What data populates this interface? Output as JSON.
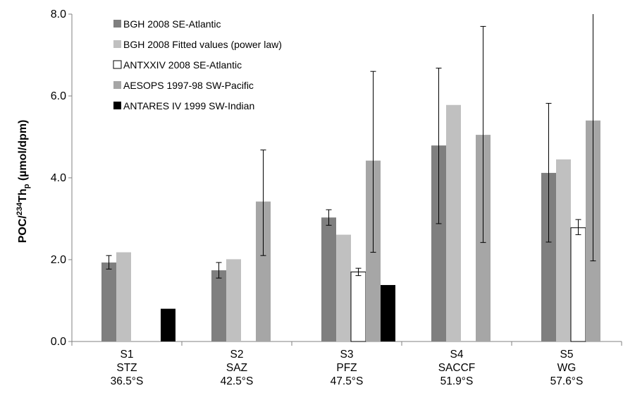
{
  "chart_data": {
    "type": "bar",
    "ylabel": {
      "prefix": "POC/",
      "superscript": "234",
      "element": "Th",
      "subscript": "p",
      "unit": " (µmol/dpm)"
    },
    "ylim": [
      0,
      8
    ],
    "yticks": [
      "0.0",
      "2.0",
      "4.0",
      "6.0",
      "8.0"
    ],
    "grid": false,
    "legend_position": "top-left",
    "categories": [
      [
        "S1",
        "STZ",
        "36.5°S"
      ],
      [
        "S2",
        "SAZ",
        "42.5°S"
      ],
      [
        "S3",
        "PFZ",
        "47.5°S"
      ],
      [
        "S4",
        "SACCF",
        "51.9°S"
      ],
      [
        "S5",
        "WG",
        "57.6°S"
      ]
    ],
    "series": [
      {
        "name": "BGH 2008 SE-Atlantic",
        "color": "#7f7f7f",
        "stroke": "none",
        "values": [
          1.93,
          1.74,
          3.03,
          4.79,
          4.12
        ],
        "error": [
          [
            1.77,
            2.1
          ],
          [
            1.55,
            1.93
          ],
          [
            2.84,
            3.22
          ],
          [
            2.88,
            6.68
          ],
          [
            2.43,
            5.82
          ]
        ]
      },
      {
        "name": "BGH 2008 Fitted values (power law)",
        "color": "#c0c0c0",
        "stroke": "none",
        "values": [
          2.18,
          2.01,
          2.61,
          5.78,
          4.45
        ],
        "error": [
          null,
          null,
          null,
          null,
          null
        ]
      },
      {
        "name": "ANTXXIV 2008 SE-Atlantic",
        "color": "#ffffff",
        "stroke": "#000000",
        "values": [
          null,
          null,
          1.7,
          null,
          2.78
        ],
        "error": [
          null,
          null,
          [
            1.61,
            1.79
          ],
          null,
          [
            2.61,
            2.98
          ]
        ]
      },
      {
        "name": "AESOPS 1997-98 SW-Pacific",
        "color": "#a6a6a6",
        "stroke": "none",
        "values": [
          null,
          3.42,
          4.42,
          5.05,
          5.4
        ],
        "error": [
          null,
          [
            2.1,
            4.68
          ],
          [
            2.18,
            6.6
          ],
          [
            2.42,
            7.7
          ],
          [
            1.97,
            8.0
          ]
        ]
      },
      {
        "name": "ANTARES IV 1999 SW-Indian",
        "color": "#000000",
        "stroke": "none",
        "values": [
          0.8,
          null,
          1.38,
          null,
          null
        ],
        "error": [
          null,
          null,
          null,
          null,
          null
        ]
      }
    ]
  }
}
